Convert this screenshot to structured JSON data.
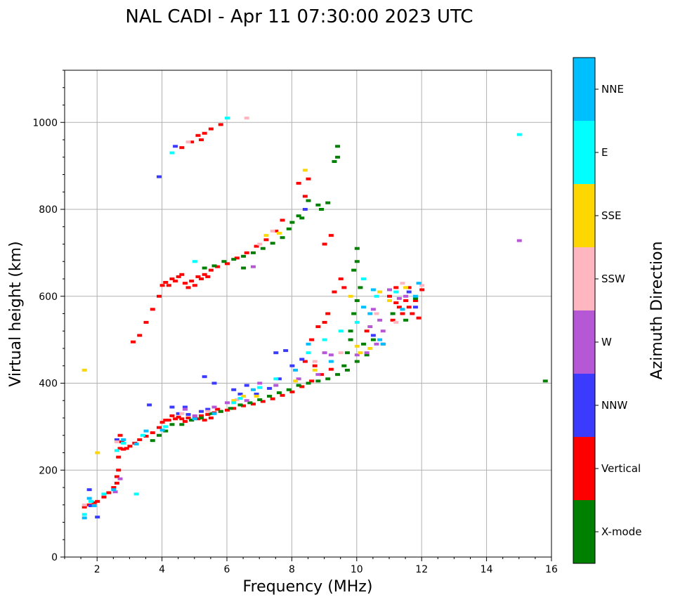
{
  "chart_data": {
    "type": "scatter",
    "title": "NAL CADI - Apr 11 07:30:00 2023 UTC",
    "xlabel": "Frequency (MHz)",
    "ylabel": "Virtual height (km)",
    "xlim": [
      1,
      16
    ],
    "ylim": [
      0,
      1120
    ],
    "xticks": [
      2,
      4,
      6,
      8,
      10,
      12,
      14,
      16
    ],
    "yticks": [
      0,
      200,
      400,
      600,
      800,
      1000
    ],
    "grid": true,
    "colorbar": {
      "label": "Azimuth Direction",
      "entries": [
        {
          "name": "X-mode",
          "color": "#008000"
        },
        {
          "name": "Vertical",
          "color": "#ff0000"
        },
        {
          "name": "NNW",
          "color": "#3b3bff"
        },
        {
          "name": "W",
          "color": "#b657d6"
        },
        {
          "name": "SSW",
          "color": "#ffb6c1"
        },
        {
          "name": "SSE",
          "color": "#ffd700"
        },
        {
          "name": "E",
          "color": "#00ffff"
        },
        {
          "name": "NNE",
          "color": "#00bfff"
        }
      ]
    },
    "series": [
      {
        "name": "Vertical",
        "color": "#ff0000",
        "points": [
          [
            1.6,
            115
          ],
          [
            1.75,
            120
          ],
          [
            1.9,
            125
          ],
          [
            2.0,
            128
          ],
          [
            2.2,
            138
          ],
          [
            2.35,
            148
          ],
          [
            2.5,
            160
          ],
          [
            2.6,
            185
          ],
          [
            2.65,
            230
          ],
          [
            2.7,
            250
          ],
          [
            2.8,
            248
          ],
          [
            2.9,
            250
          ],
          [
            3.0,
            255
          ],
          [
            3.15,
            262
          ],
          [
            3.3,
            270
          ],
          [
            3.5,
            278
          ],
          [
            3.7,
            286
          ],
          [
            3.9,
            298
          ],
          [
            4.0,
            310
          ],
          [
            4.2,
            315
          ],
          [
            4.4,
            318
          ],
          [
            4.6,
            318
          ],
          [
            4.8,
            320
          ],
          [
            5.0,
            322
          ],
          [
            5.2,
            325
          ],
          [
            5.4,
            328
          ],
          [
            5.6,
            332
          ],
          [
            5.8,
            335
          ],
          [
            6.0,
            338
          ],
          [
            6.2,
            342
          ],
          [
            6.5,
            348
          ],
          [
            6.8,
            352
          ],
          [
            7.1,
            358
          ],
          [
            7.4,
            364
          ],
          [
            7.7,
            372
          ],
          [
            8.0,
            380
          ],
          [
            8.3,
            392
          ],
          [
            8.6,
            405
          ],
          [
            8.9,
            420
          ],
          [
            9.2,
            432
          ],
          [
            4.1,
            315
          ],
          [
            4.3,
            325
          ],
          [
            4.5,
            322
          ],
          [
            4.7,
            312
          ],
          [
            4.9,
            315
          ],
          [
            5.1,
            318
          ],
          [
            5.3,
            315
          ],
          [
            5.5,
            320
          ],
          [
            5.7,
            340
          ],
          [
            2.65,
            200
          ],
          [
            2.6,
            170
          ],
          [
            2.7,
            280
          ],
          [
            2.75,
            265
          ],
          [
            3.1,
            495
          ],
          [
            3.3,
            510
          ],
          [
            3.5,
            540
          ],
          [
            3.7,
            570
          ],
          [
            3.9,
            600
          ],
          [
            4.0,
            625
          ],
          [
            4.1,
            632
          ],
          [
            4.3,
            640
          ],
          [
            4.5,
            645
          ],
          [
            4.7,
            630
          ],
          [
            4.9,
            635
          ],
          [
            5.1,
            645
          ],
          [
            5.3,
            650
          ],
          [
            5.5,
            660
          ],
          [
            5.7,
            668
          ],
          [
            6.0,
            675
          ],
          [
            6.3,
            688
          ],
          [
            6.6,
            700
          ],
          [
            6.9,
            715
          ],
          [
            7.2,
            730
          ],
          [
            7.5,
            750
          ],
          [
            7.7,
            775
          ],
          [
            4.2,
            625
          ],
          [
            4.4,
            635
          ],
          [
            4.6,
            650
          ],
          [
            4.8,
            620
          ],
          [
            5.0,
            625
          ],
          [
            5.2,
            640
          ],
          [
            5.4,
            645
          ],
          [
            8.2,
            860
          ],
          [
            8.4,
            830
          ],
          [
            8.5,
            870
          ],
          [
            9.0,
            720
          ],
          [
            9.2,
            740
          ],
          [
            9.1,
            560
          ],
          [
            8.6,
            500
          ],
          [
            8.8,
            530
          ],
          [
            9.0,
            540
          ],
          [
            9.3,
            610
          ],
          [
            9.5,
            640
          ],
          [
            8.7,
            440
          ],
          [
            8.4,
            450
          ],
          [
            9.6,
            620
          ],
          [
            11.0,
            600
          ],
          [
            11.2,
            585
          ],
          [
            11.4,
            560
          ],
          [
            11.6,
            575
          ],
          [
            11.8,
            590
          ],
          [
            12.0,
            615
          ],
          [
            11.1,
            545
          ],
          [
            11.3,
            575
          ],
          [
            11.5,
            590
          ],
          [
            11.7,
            560
          ],
          [
            11.9,
            550
          ],
          [
            11.2,
            620
          ],
          [
            11.6,
            620
          ],
          [
            10.3,
            520
          ],
          [
            10.8,
            490
          ],
          [
            4.6,
            942
          ],
          [
            4.9,
            955
          ],
          [
            5.1,
            970
          ],
          [
            5.3,
            975
          ],
          [
            5.5,
            985
          ],
          [
            5.8,
            995
          ],
          [
            5.2,
            960
          ]
        ]
      },
      {
        "name": "X-mode",
        "color": "#008000",
        "points": [
          [
            3.7,
            268
          ],
          [
            3.9,
            280
          ],
          [
            4.1,
            290
          ],
          [
            4.3,
            305
          ],
          [
            4.6,
            305
          ],
          [
            4.9,
            315
          ],
          [
            5.2,
            320
          ],
          [
            5.5,
            330
          ],
          [
            5.8,
            335
          ],
          [
            6.1,
            342
          ],
          [
            6.4,
            350
          ],
          [
            6.7,
            355
          ],
          [
            7.0,
            362
          ],
          [
            7.3,
            370
          ],
          [
            7.6,
            378
          ],
          [
            7.9,
            385
          ],
          [
            8.2,
            395
          ],
          [
            8.5,
            400
          ],
          [
            8.8,
            405
          ],
          [
            9.1,
            410
          ],
          [
            9.4,
            420
          ],
          [
            9.7,
            430
          ],
          [
            10.0,
            450
          ],
          [
            10.3,
            465
          ],
          [
            9.8,
            500
          ],
          [
            9.9,
            560
          ],
          [
            10.0,
            590
          ],
          [
            10.1,
            620
          ],
          [
            10.0,
            680
          ],
          [
            10.0,
            710
          ],
          [
            9.9,
            660
          ],
          [
            9.8,
            520
          ],
          [
            9.7,
            470
          ],
          [
            9.6,
            440
          ],
          [
            10.2,
            490
          ],
          [
            10.5,
            500
          ],
          [
            5.3,
            665
          ],
          [
            5.6,
            670
          ],
          [
            5.9,
            680
          ],
          [
            6.2,
            685
          ],
          [
            6.5,
            692
          ],
          [
            6.8,
            700
          ],
          [
            7.1,
            710
          ],
          [
            7.4,
            722
          ],
          [
            7.7,
            735
          ],
          [
            7.9,
            755
          ],
          [
            8.0,
            770
          ],
          [
            8.2,
            785
          ],
          [
            8.3,
            780
          ],
          [
            8.5,
            820
          ],
          [
            8.8,
            810
          ],
          [
            9.1,
            815
          ],
          [
            9.3,
            910
          ],
          [
            9.4,
            945
          ],
          [
            9.4,
            920
          ],
          [
            8.9,
            800
          ],
          [
            11.1,
            560
          ],
          [
            11.5,
            545
          ],
          [
            11.8,
            595
          ],
          [
            15.8,
            405
          ],
          [
            6.5,
            665
          ]
        ]
      },
      {
        "name": "NNW",
        "color": "#3b3bff",
        "points": [
          [
            1.75,
            155
          ],
          [
            1.8,
            118
          ],
          [
            2.0,
            92
          ],
          [
            2.6,
            270
          ],
          [
            3.6,
            350
          ],
          [
            4.3,
            345
          ],
          [
            4.5,
            330
          ],
          [
            4.8,
            328
          ],
          [
            5.2,
            335
          ],
          [
            5.4,
            340
          ],
          [
            6.2,
            385
          ],
          [
            6.4,
            375
          ],
          [
            6.6,
            395
          ],
          [
            6.9,
            375
          ],
          [
            7.3,
            388
          ],
          [
            7.6,
            410
          ],
          [
            8.0,
            440
          ],
          [
            7.5,
            470
          ],
          [
            7.8,
            475
          ],
          [
            8.3,
            455
          ],
          [
            5.3,
            415
          ],
          [
            5.6,
            400
          ],
          [
            4.7,
            345
          ],
          [
            11.6,
            610
          ],
          [
            11.8,
            575
          ],
          [
            10.5,
            510
          ],
          [
            4.4,
            945
          ],
          [
            3.9,
            875
          ],
          [
            8.4,
            800
          ]
        ]
      },
      {
        "name": "W",
        "color": "#b657d6",
        "points": [
          [
            2.55,
            150
          ],
          [
            2.7,
            180
          ],
          [
            4.7,
            340
          ],
          [
            5.0,
            325
          ],
          [
            5.6,
            345
          ],
          [
            6.0,
            355
          ],
          [
            6.6,
            360
          ],
          [
            7.0,
            400
          ],
          [
            7.5,
            395
          ],
          [
            8.2,
            410
          ],
          [
            8.8,
            420
          ],
          [
            9.0,
            470
          ],
          [
            9.2,
            465
          ],
          [
            10.0,
            465
          ],
          [
            10.3,
            470
          ],
          [
            10.6,
            490
          ],
          [
            10.8,
            520
          ],
          [
            10.4,
            530
          ],
          [
            10.7,
            545
          ],
          [
            11.3,
            595
          ],
          [
            11.5,
            600
          ],
          [
            11.0,
            615
          ],
          [
            10.5,
            570
          ],
          [
            15.0,
            728
          ],
          [
            6.8,
            668
          ]
        ]
      },
      {
        "name": "SSW",
        "color": "#ffb6c1",
        "points": [
          [
            1.6,
            120
          ],
          [
            2.6,
            265
          ],
          [
            4.6,
            330
          ],
          [
            5.4,
            335
          ],
          [
            6.3,
            362
          ],
          [
            6.6,
            1010
          ],
          [
            7.0,
            720
          ],
          [
            7.4,
            750
          ],
          [
            8.7,
            450
          ],
          [
            9.5,
            470
          ],
          [
            10.6,
            560
          ],
          [
            11.2,
            540
          ],
          [
            11.4,
            630
          ],
          [
            12.0,
            625
          ],
          [
            4.8,
            955
          ]
        ]
      },
      {
        "name": "SSE",
        "color": "#ffd700",
        "points": [
          [
            1.6,
            430
          ],
          [
            2.0,
            240
          ],
          [
            6.2,
            360
          ],
          [
            6.5,
            370
          ],
          [
            6.9,
            370
          ],
          [
            7.2,
            740
          ],
          [
            7.6,
            745
          ],
          [
            8.1,
            405
          ],
          [
            8.7,
            430
          ],
          [
            9.8,
            600
          ],
          [
            10.0,
            485
          ],
          [
            10.1,
            470
          ],
          [
            10.4,
            480
          ],
          [
            10.7,
            610
          ],
          [
            11.0,
            590
          ],
          [
            11.5,
            620
          ],
          [
            8.4,
            890
          ]
        ]
      },
      {
        "name": "E",
        "color": "#00ffff",
        "points": [
          [
            1.6,
            98
          ],
          [
            1.8,
            128
          ],
          [
            2.2,
            145
          ],
          [
            2.6,
            245
          ],
          [
            2.8,
            262
          ],
          [
            3.4,
            280
          ],
          [
            4.1,
            300
          ],
          [
            4.3,
            930
          ],
          [
            5.0,
            680
          ],
          [
            6.2,
            355
          ],
          [
            6.4,
            365
          ],
          [
            7.0,
            390
          ],
          [
            7.5,
            410
          ],
          [
            8.5,
            470
          ],
          [
            9.0,
            500
          ],
          [
            9.5,
            520
          ],
          [
            10.0,
            540
          ],
          [
            10.2,
            640
          ],
          [
            10.6,
            600
          ],
          [
            11.2,
            610
          ],
          [
            15.0,
            972
          ],
          [
            6.0,
            1010
          ],
          [
            3.2,
            145
          ]
        ]
      },
      {
        "name": "NNE",
        "color": "#00bfff",
        "points": [
          [
            1.6,
            90
          ],
          [
            1.75,
            135
          ],
          [
            1.9,
            118
          ],
          [
            2.5,
            155
          ],
          [
            2.8,
            270
          ],
          [
            3.2,
            260
          ],
          [
            3.5,
            290
          ],
          [
            4.0,
            292
          ],
          [
            5.0,
            318
          ],
          [
            5.6,
            330
          ],
          [
            6.8,
            385
          ],
          [
            8.1,
            430
          ],
          [
            8.5,
            490
          ],
          [
            9.2,
            450
          ],
          [
            10.2,
            575
          ],
          [
            10.5,
            615
          ],
          [
            10.8,
            490
          ],
          [
            10.7,
            500
          ],
          [
            11.4,
            570
          ],
          [
            11.8,
            600
          ],
          [
            11.9,
            630
          ],
          [
            10.4,
            560
          ]
        ]
      }
    ]
  }
}
